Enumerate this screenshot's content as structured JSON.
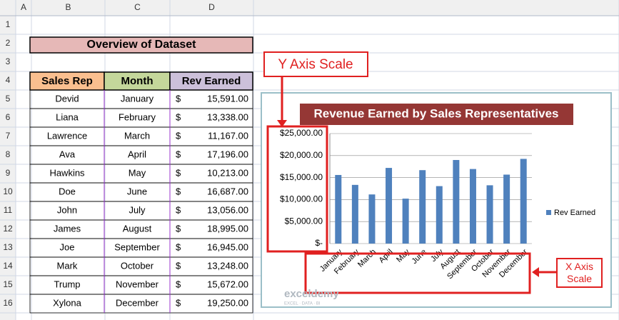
{
  "sheet": {
    "columns": [
      "A",
      "B",
      "C",
      "D"
    ],
    "rows": [
      1,
      2,
      3,
      4,
      5,
      6,
      7,
      8,
      9,
      10,
      11,
      12,
      13,
      14,
      15,
      16
    ]
  },
  "table": {
    "title": "Overview of Dataset",
    "headers": [
      "Sales Rep",
      "Month",
      "Rev Earned"
    ],
    "rows": [
      [
        "Devid",
        "January",
        "$",
        "15,591.00"
      ],
      [
        "Liana",
        "February",
        "$",
        "13,338.00"
      ],
      [
        "Lawrence",
        "March",
        "$",
        "11,167.00"
      ],
      [
        "Ava",
        "April",
        "$",
        "17,196.00"
      ],
      [
        "Hawkins",
        "May",
        "$",
        "10,213.00"
      ],
      [
        "Doe",
        "June",
        "$",
        "16,687.00"
      ],
      [
        "John",
        "July",
        "$",
        "13,056.00"
      ],
      [
        "James",
        "August",
        "$",
        "18,995.00"
      ],
      [
        "Joe",
        "September",
        "$",
        "16,945.00"
      ],
      [
        "Mark",
        "October",
        "$",
        "13,248.00"
      ],
      [
        "Trump",
        "November",
        "$",
        "15,672.00"
      ],
      [
        "Xylona",
        "December",
        "$",
        "19,250.00"
      ]
    ]
  },
  "chart_data": {
    "type": "bar",
    "title": "Revenue Earned by Sales Representatives",
    "categories": [
      "January",
      "February",
      "March",
      "April",
      "May",
      "June",
      "July",
      "August",
      "September",
      "October",
      "November",
      "December"
    ],
    "series": [
      {
        "name": "Rev Earned",
        "color": "#4f81bd",
        "values": [
          15591,
          13338,
          11167,
          17196,
          10213,
          16687,
          13056,
          18995,
          16945,
          13248,
          15672,
          19250
        ]
      }
    ],
    "ylim": [
      0,
      25000
    ],
    "yticks": [
      {
        "value": 0,
        "label": "$-"
      },
      {
        "value": 5000,
        "label": "$5,000.00"
      },
      {
        "value": 10000,
        "label": "$10,000.00"
      },
      {
        "value": 15000,
        "label": "$15,000.00"
      },
      {
        "value": 20000,
        "label": "$20,000.00"
      },
      {
        "value": 25000,
        "label": "$25,000.00"
      }
    ],
    "grid": true,
    "legend": "right"
  },
  "annotations": {
    "y_axis": "Y Axis Scale",
    "x_axis": "X Axis Scale"
  },
  "watermark": {
    "name": "exceldemy",
    "tagline": "EXCEL · DATA · BI"
  }
}
